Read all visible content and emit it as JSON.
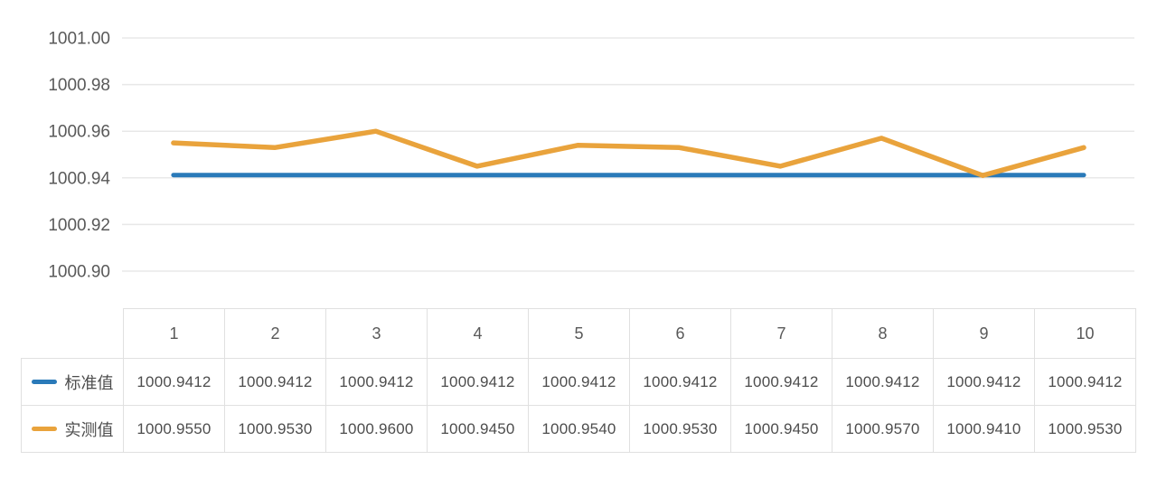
{
  "colors": {
    "background": "#ffffff",
    "grid_line": "#e8e8e8",
    "table_border": "#e0e0e0",
    "axis_text": "#595959",
    "table_text": "#4d4d4d"
  },
  "chart_data": {
    "type": "line",
    "title": "",
    "xlabel": "",
    "ylabel": "",
    "grid": true,
    "legend_position": "table-row-headers",
    "value_decimals": 4,
    "categories": [
      "1",
      "2",
      "3",
      "4",
      "5",
      "6",
      "7",
      "8",
      "9",
      "10"
    ],
    "series": [
      {
        "id": "standard",
        "name": "标准值",
        "color": "#2a7ab9",
        "line_width": 5,
        "values": [
          1000.9412,
          1000.9412,
          1000.9412,
          1000.9412,
          1000.9412,
          1000.9412,
          1000.9412,
          1000.9412,
          1000.9412,
          1000.9412
        ]
      },
      {
        "id": "measured",
        "name": "实测值",
        "color": "#e9a33c",
        "line_width": 5.5,
        "values": [
          1000.955,
          1000.953,
          1000.96,
          1000.945,
          1000.954,
          1000.953,
          1000.945,
          1000.957,
          1000.941,
          1000.953
        ]
      }
    ],
    "ylim": [
      1000.9,
      1001.0
    ],
    "yticks": [
      {
        "label": "1001.00",
        "value": 1001.0
      },
      {
        "label": "1000.98",
        "value": 1000.98
      },
      {
        "label": "1000.96",
        "value": 1000.96
      },
      {
        "label": "1000.94",
        "value": 1000.94
      },
      {
        "label": "1000.92",
        "value": 1000.92
      },
      {
        "label": "1000.90",
        "value": 1000.9
      }
    ]
  }
}
